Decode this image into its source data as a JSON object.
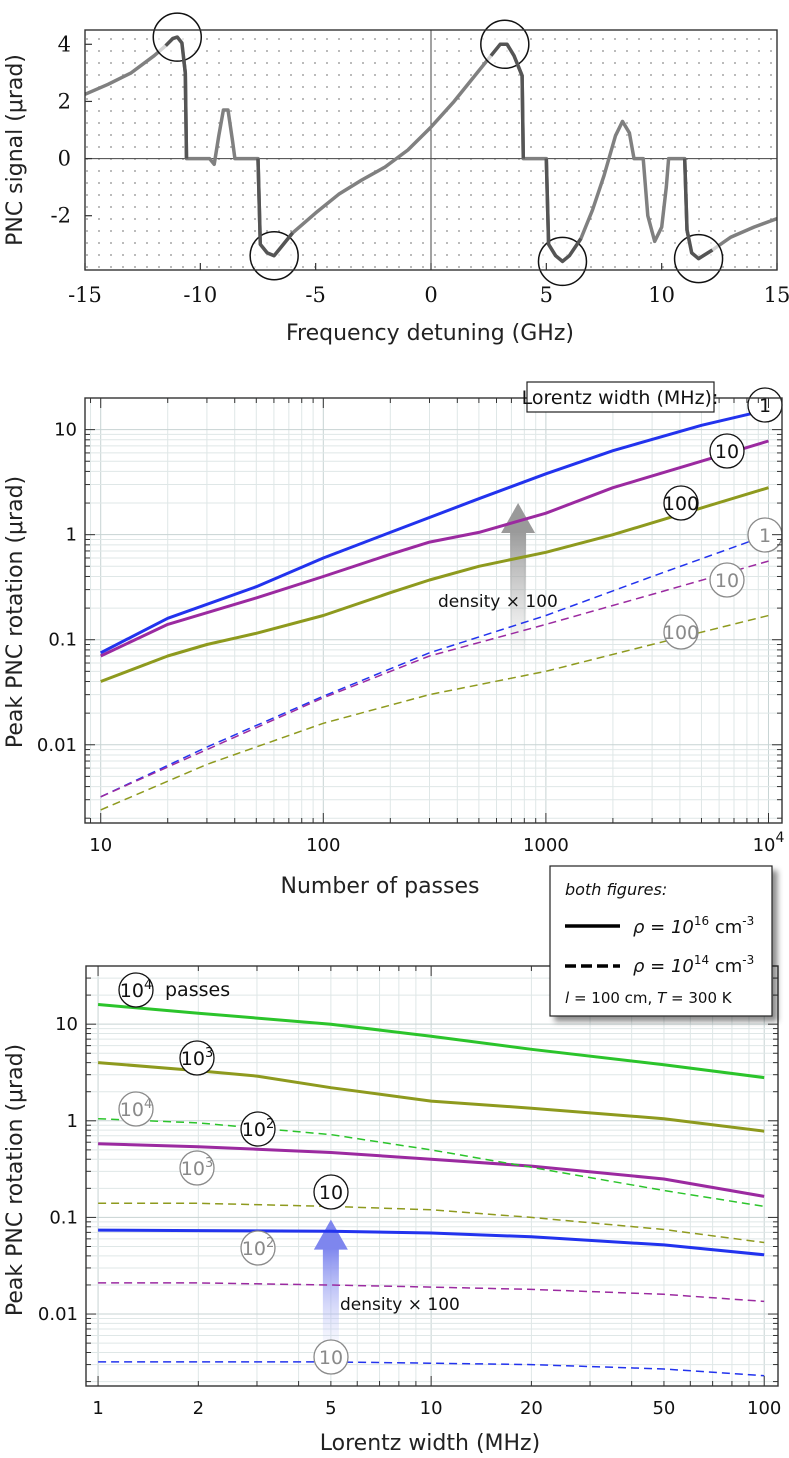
{
  "chart_data": [
    {
      "type": "line",
      "title": "",
      "xlabel": "Frequency detuning (GHz)",
      "ylabel": "PNC signal (μrad)",
      "xlim": [
        -15,
        15
      ],
      "ylim": [
        -3.9,
        4.5
      ],
      "xticks": [
        "-15",
        "-10",
        "-5",
        "0",
        "5",
        "10",
        "15"
      ],
      "yticks": [
        "4",
        "2",
        "0",
        "-2"
      ],
      "series": [
        {
          "name": "PNC signal",
          "color": "#808080",
          "points": [
            [
              -15,
              2.25
            ],
            [
              -14,
              2.6
            ],
            [
              -13,
              3.0
            ],
            [
              -12,
              3.6
            ],
            [
              -11.5,
              3.95
            ],
            [
              -11.2,
              4.2
            ],
            [
              -11.0,
              4.25
            ],
            [
              -10.8,
              4.05
            ],
            [
              -10.65,
              3.0
            ],
            [
              -10.6,
              0
            ],
            [
              -9.6,
              0
            ],
            [
              -9.4,
              -0.2
            ],
            [
              -9.2,
              0.8
            ],
            [
              -9.0,
              1.7
            ],
            [
              -8.8,
              1.7
            ],
            [
              -8.6,
              0.6
            ],
            [
              -8.5,
              0
            ],
            [
              -7.5,
              0
            ],
            [
              -7.4,
              -3.0
            ],
            [
              -7.1,
              -3.3
            ],
            [
              -6.8,
              -3.4
            ],
            [
              -6.5,
              -3.1
            ],
            [
              -6.0,
              -2.6
            ],
            [
              -5,
              -1.9
            ],
            [
              -4,
              -1.25
            ],
            [
              -3,
              -0.75
            ],
            [
              -2,
              -0.3
            ],
            [
              -1,
              0.3
            ],
            [
              0,
              1.1
            ],
            [
              1,
              2.0
            ],
            [
              2,
              3.0
            ],
            [
              2.6,
              3.6
            ],
            [
              3.0,
              4.0
            ],
            [
              3.3,
              4.0
            ],
            [
              3.6,
              3.6
            ],
            [
              3.95,
              2.9
            ],
            [
              4.0,
              0
            ],
            [
              5.0,
              0
            ],
            [
              5.1,
              -3.0
            ],
            [
              5.4,
              -3.4
            ],
            [
              5.7,
              -3.6
            ],
            [
              6.0,
              -3.4
            ],
            [
              6.5,
              -2.8
            ],
            [
              7.0,
              -1.8
            ],
            [
              7.5,
              -0.6
            ],
            [
              8.0,
              0.8
            ],
            [
              8.3,
              1.3
            ],
            [
              8.6,
              0.9
            ],
            [
              8.8,
              0
            ],
            [
              9.2,
              0
            ],
            [
              9.4,
              -2.0
            ],
            [
              9.7,
              -2.9
            ],
            [
              10.0,
              -2.4
            ],
            [
              10.2,
              -1.0
            ],
            [
              10.3,
              0
            ],
            [
              11.0,
              0
            ],
            [
              11.1,
              -2.5
            ],
            [
              11.3,
              -3.3
            ],
            [
              11.6,
              -3.5
            ],
            [
              12.2,
              -3.2
            ],
            [
              13,
              -2.75
            ],
            [
              14,
              -2.4
            ],
            [
              15,
              -2.1
            ]
          ]
        }
      ],
      "highlight_circles_at": [
        [
          -11.0,
          4.25
        ],
        [
          -6.8,
          -3.4
        ],
        [
          3.2,
          4.0
        ],
        [
          5.7,
          -3.6
        ],
        [
          11.6,
          -3.5
        ]
      ]
    },
    {
      "type": "line",
      "title": "",
      "xlabel": "Number of passes",
      "ylabel": "Peak PNC rotation (μrad)",
      "xscale": "log",
      "yscale": "log",
      "xlim": [
        8.5,
        11500
      ],
      "ylim": [
        0.0018,
        20
      ],
      "xticks": [
        {
          "value": 10,
          "label": "10"
        },
        {
          "value": 100,
          "label": "100"
        },
        {
          "value": 1000,
          "label": "1000"
        },
        {
          "value": 10000,
          "label": "10",
          "sup": "4"
        }
      ],
      "yticks": [
        {
          "value": 10,
          "label": "10"
        },
        {
          "value": 1,
          "label": "1"
        },
        {
          "value": 0.1,
          "label": "0.1"
        },
        {
          "value": 0.01,
          "label": "0.01"
        }
      ],
      "legend_title": "Lorentz width (MHz):",
      "annotation": {
        "text": "density × 100",
        "arrow_from": [
          750,
          0.07
        ],
        "arrow_to": [
          750,
          2.0
        ]
      },
      "series": [
        {
          "name": "1",
          "density": "1e16",
          "dash": false,
          "color": "#2233ee",
          "x": [
            10,
            20,
            50,
            100,
            200,
            500,
            1000,
            2000,
            5000,
            10000
          ],
          "y": [
            0.075,
            0.16,
            0.32,
            0.6,
            1.05,
            2.2,
            3.8,
            6.3,
            11,
            15.5
          ]
        },
        {
          "name": "10",
          "density": "1e16",
          "dash": false,
          "color": "#9b2aa0",
          "x": [
            10,
            20,
            50,
            100,
            200,
            300,
            500,
            1000,
            2000,
            5000,
            10000
          ],
          "y": [
            0.07,
            0.14,
            0.25,
            0.4,
            0.65,
            0.85,
            1.05,
            1.6,
            2.8,
            5.0,
            7.8
          ]
        },
        {
          "name": "100",
          "density": "1e16",
          "dash": false,
          "color": "#8e9a1e",
          "x": [
            10,
            20,
            30,
            50,
            100,
            200,
            300,
            500,
            1000,
            2000,
            5000,
            10000
          ],
          "y": [
            0.04,
            0.07,
            0.09,
            0.115,
            0.17,
            0.28,
            0.37,
            0.5,
            0.68,
            1.0,
            1.8,
            2.8
          ]
        },
        {
          "name": "1",
          "density": "1e14",
          "dash": true,
          "color": "#2233ee",
          "x": [
            10,
            30,
            100,
            300,
            1000,
            3000,
            10000
          ],
          "y": [
            0.0032,
            0.0095,
            0.029,
            0.075,
            0.17,
            0.4,
            1.0
          ]
        },
        {
          "name": "10",
          "density": "1e14",
          "dash": true,
          "color": "#9b2aa0",
          "x": [
            10,
            30,
            100,
            300,
            1000,
            3000,
            10000
          ],
          "y": [
            0.0032,
            0.009,
            0.028,
            0.07,
            0.14,
            0.27,
            0.56
          ]
        },
        {
          "name": "100",
          "density": "1e14",
          "dash": true,
          "color": "#8e9a1e",
          "x": [
            10,
            30,
            100,
            300,
            1000,
            3000,
            10000
          ],
          "y": [
            0.0024,
            0.0065,
            0.016,
            0.03,
            0.05,
            0.09,
            0.17
          ]
        }
      ]
    },
    {
      "type": "line",
      "title": "",
      "xlabel": "Lorentz width (MHz)",
      "ylabel": "Peak PNC rotation (μrad)",
      "xscale": "log",
      "yscale": "log",
      "xlim": [
        0.92,
        110
      ],
      "ylim": [
        0.0018,
        40
      ],
      "xticks": [
        {
          "value": 1,
          "label": "1"
        },
        {
          "value": 2,
          "label": "2"
        },
        {
          "value": 5,
          "label": "5"
        },
        {
          "value": 10,
          "label": "10"
        },
        {
          "value": 20,
          "label": "20"
        },
        {
          "value": 50,
          "label": "50"
        },
        {
          "value": 100,
          "label": "100"
        }
      ],
      "yticks": [
        {
          "value": 10,
          "label": "10"
        },
        {
          "value": 1,
          "label": "1"
        },
        {
          "value": 0.1,
          "label": "0.1"
        },
        {
          "value": 0.01,
          "label": "0.01"
        }
      ],
      "passes_suffix": "passes",
      "annotation": {
        "text": "density × 100",
        "arrow_from": [
          5,
          0.0045
        ],
        "arrow_to": [
          5,
          0.095
        ]
      },
      "series": [
        {
          "name": "10",
          "sup": "4",
          "density": "1e16",
          "dash": false,
          "color": "#2bc42b",
          "x": [
            1,
            2,
            5,
            10,
            20,
            50,
            100
          ],
          "y": [
            16,
            13,
            10,
            7.5,
            5.5,
            3.8,
            2.8
          ]
        },
        {
          "name": "10",
          "sup": "3",
          "density": "1e16",
          "dash": false,
          "color": "#8e9a1e",
          "x": [
            1,
            2,
            3,
            5,
            10,
            20,
            50,
            100
          ],
          "y": [
            4.0,
            3.3,
            2.9,
            2.2,
            1.6,
            1.35,
            1.05,
            0.78
          ]
        },
        {
          "name": "10",
          "sup": "2",
          "density": "1e16",
          "dash": false,
          "color": "#9b2aa0",
          "x": [
            1,
            2,
            5,
            10,
            20,
            50,
            100
          ],
          "y": [
            0.58,
            0.54,
            0.47,
            0.4,
            0.34,
            0.25,
            0.165
          ]
        },
        {
          "name": "10",
          "sup": "",
          "density": "1e16",
          "dash": false,
          "color": "#2233ee",
          "x": [
            1,
            2,
            5,
            10,
            20,
            50,
            100
          ],
          "y": [
            0.074,
            0.073,
            0.072,
            0.069,
            0.063,
            0.052,
            0.041
          ]
        },
        {
          "name": "10",
          "sup": "4",
          "density": "1e14",
          "dash": true,
          "color": "#2bc42b",
          "x": [
            1,
            2,
            5,
            10,
            20,
            50,
            100
          ],
          "y": [
            1.05,
            0.95,
            0.72,
            0.5,
            0.33,
            0.19,
            0.13
          ]
        },
        {
          "name": "10",
          "sup": "3",
          "density": "1e14",
          "dash": true,
          "color": "#8e9a1e",
          "x": [
            1,
            2,
            5,
            10,
            20,
            50,
            100
          ],
          "y": [
            0.14,
            0.14,
            0.13,
            0.12,
            0.1,
            0.075,
            0.055
          ]
        },
        {
          "name": "10",
          "sup": "2",
          "density": "1e14",
          "dash": true,
          "color": "#9b2aa0",
          "x": [
            1,
            2,
            5,
            10,
            20,
            50,
            100
          ],
          "y": [
            0.021,
            0.021,
            0.02,
            0.019,
            0.018,
            0.016,
            0.0135
          ]
        },
        {
          "name": "10",
          "sup": "",
          "density": "1e14",
          "dash": true,
          "color": "#2233ee",
          "x": [
            1,
            2,
            5,
            10,
            20,
            50,
            100
          ],
          "y": [
            0.0032,
            0.0032,
            0.0032,
            0.0031,
            0.003,
            0.0027,
            0.0023
          ]
        }
      ]
    }
  ],
  "shared_legend": {
    "title": "both figures:",
    "entries": [
      {
        "style": "solid",
        "rho_label": "ρ = 10",
        "exp": "16",
        "unit": " cm",
        "unit_exp": "-3"
      },
      {
        "style": "dashed",
        "rho_label": "ρ = 10",
        "exp": "14",
        "unit": " cm",
        "unit_exp": "-3"
      }
    ],
    "conditions": {
      "l_sym": "l",
      "l_rest": " = 100 cm, ",
      "t_sym": "T",
      "t_rest": " = 300 K"
    }
  }
}
